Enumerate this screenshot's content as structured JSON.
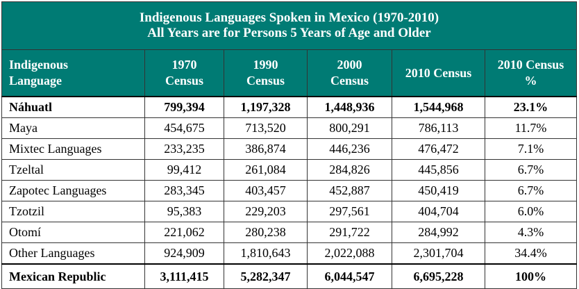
{
  "title_line1": "Indigenous Languages Spoken in Mexico (1970-2010)",
  "title_line2": "All Years are for Persons 5 Years of Age and Older",
  "headers": {
    "lang_line1": "Indigenous",
    "lang_line2": "Language",
    "c1970_line1": "1970",
    "c1970_line2": "Census",
    "c1990_line1": "1990",
    "c1990_line2": "Census",
    "c2000_line1": "2000",
    "c2000_line2": "Census",
    "c2010": "2010 Census",
    "pct_line1": "2010 Census",
    "pct_line2": "%"
  },
  "rows": [
    {
      "language": "Náhuatl",
      "c1970": "799,394",
      "c1990": "1,197,328",
      "c2000": "1,448,936",
      "c2010": "1,544,968",
      "pct": "23.1%"
    },
    {
      "language": "Maya",
      "c1970": "454,675",
      "c1990": "713,520",
      "c2000": "800,291",
      "c2010": "786,113",
      "pct": "11.7%"
    },
    {
      "language": "Mixtec Languages",
      "c1970": "233,235",
      "c1990": "386,874",
      "c2000": "446,236",
      "c2010": "476,472",
      "pct": "7.1%"
    },
    {
      "language": "Tzeltal",
      "c1970": "99,412",
      "c1990": "261,084",
      "c2000": "284,826",
      "c2010": "445,856",
      "pct": "6.7%"
    },
    {
      "language": "Zapotec Languages",
      "c1970": "283,345",
      "c1990": "403,457",
      "c2000": "452,887",
      "c2010": "450,419",
      "pct": "6.7%"
    },
    {
      "language": "Tzotzil",
      "c1970": "95,383",
      "c1990": "229,203",
      "c2000": "297,561",
      "c2010": "404,704",
      "pct": "6.0%"
    },
    {
      "language": "Otomí",
      "c1970": "221,062",
      "c1990": "280,238",
      "c2000": "291,722",
      "c2010": "284,992",
      "pct": "4.3%"
    },
    {
      "language": "Other Languages",
      "c1970": "924,909",
      "c1990": "1,810,643",
      "c2000": "2,022,088",
      "c2010": "2,301,704",
      "pct": "34.4%"
    },
    {
      "language": "Mexican Republic",
      "c1970": "3,111,415",
      "c1990": "5,282,347",
      "c2000": "6,044,547",
      "c2010": "6,695,228",
      "pct": "100%"
    }
  ]
}
